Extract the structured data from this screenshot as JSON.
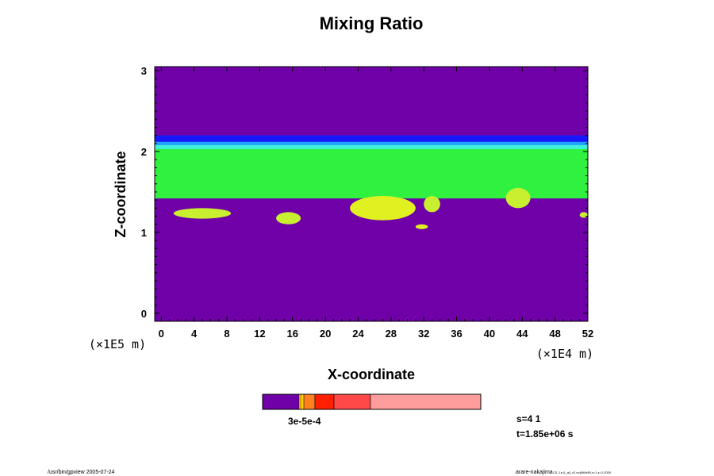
{
  "chart_data": {
    "type": "heatmap",
    "title": "Mixing Ratio",
    "xlabel": "X-coordinate",
    "ylabel": "Z-coordinate",
    "x_unit": "(×1E4 m)",
    "y_unit": "(×1E5 m)",
    "xlim": [
      -0.8,
      52
    ],
    "ylim": [
      -0.1,
      3.05
    ],
    "x_ticks": [
      0,
      4,
      8,
      12,
      16,
      20,
      24,
      28,
      32,
      36,
      40,
      44,
      48,
      52
    ],
    "y_ticks": [
      0,
      1,
      2,
      3
    ],
    "background_value_color": "#7000a8",
    "layers": [
      {
        "name": "dark-blue band",
        "color": "#1818ff",
        "z_bottom": 2.1,
        "z_top": 2.2
      },
      {
        "name": "blue band",
        "color": "#20a0ff",
        "z_bottom": 2.06,
        "z_top": 2.12
      },
      {
        "name": "cyan band",
        "color": "#40f0d8",
        "z_bottom": 2.02,
        "z_top": 2.08
      },
      {
        "name": "green layer",
        "color": "#30f040",
        "z_bottom": 1.42,
        "z_top": 2.03
      }
    ],
    "patches": [
      {
        "color": "#c8f030",
        "x": [
          1.5,
          8.5
        ],
        "z": [
          1.17,
          1.3
        ]
      },
      {
        "color": "#c8f030",
        "x": [
          14,
          17
        ],
        "z": [
          1.1,
          1.25
        ]
      },
      {
        "color": "#e0f020",
        "x": [
          23,
          31
        ],
        "z": [
          1.15,
          1.45
        ]
      },
      {
        "color": "#c8f030",
        "x": [
          32,
          34
        ],
        "z": [
          1.25,
          1.45
        ]
      },
      {
        "color": "#c8f030",
        "x": [
          42,
          45
        ],
        "z": [
          1.3,
          1.55
        ]
      },
      {
        "color": "#e0f020",
        "x": [
          31,
          32.5
        ],
        "z": [
          1.04,
          1.1
        ]
      },
      {
        "color": "#c8f030",
        "x": [
          51,
          52
        ],
        "z": [
          1.18,
          1.25
        ]
      }
    ],
    "colorbar": {
      "colors": [
        "#7000a8",
        "#e0a000",
        "#ffd000",
        "#ff8020",
        "#ff2000",
        "#ff4848",
        "#ff9c9c"
      ],
      "labels_text": "3e-5e-4"
    },
    "info": {
      "step": "s=4 1",
      "time": "t=1.85e+06 s"
    },
    "footer_left": "/usr/bin/gpview 2005-07-24",
    "footer_right": "arare-nakajima",
    "footer_right_small": "CS_1e-6_all_v2.nc@MixRt,x=1,z=1:2000"
  }
}
